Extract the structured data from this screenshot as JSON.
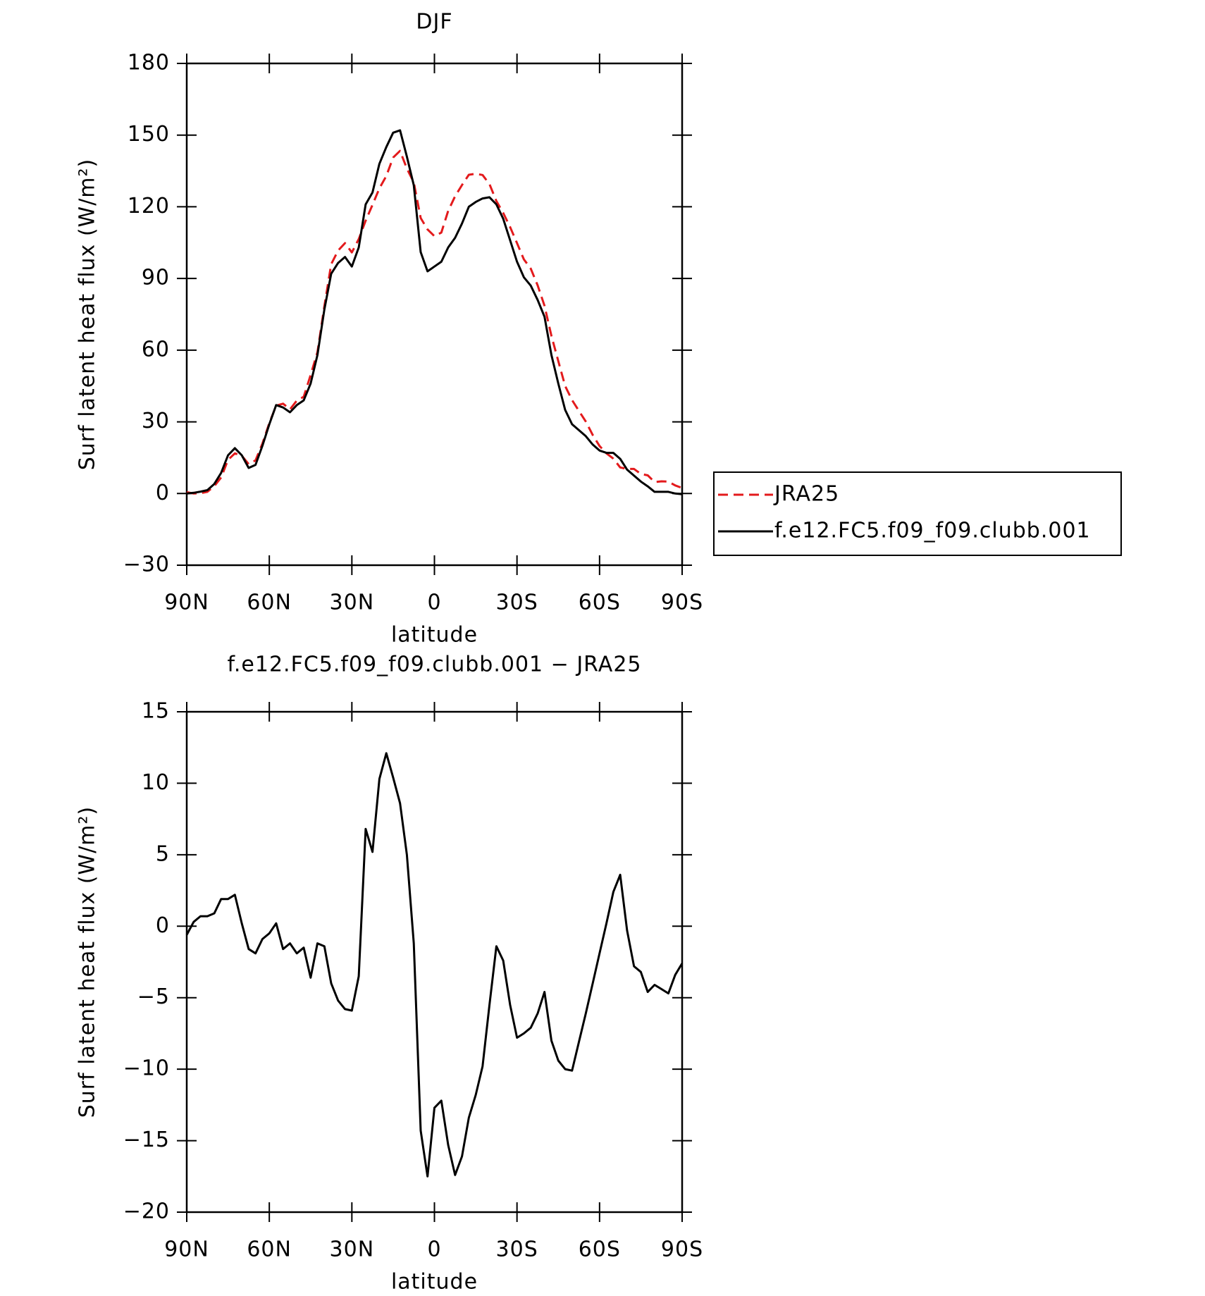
{
  "chart_data": [
    {
      "type": "line",
      "title": "DJF",
      "xlabel": "latitude",
      "ylabel": "Surf latent heat flux (W/m²)",
      "x": [
        90,
        87.5,
        85,
        82.5,
        80,
        77.5,
        75,
        72.5,
        70,
        67.5,
        65,
        62.5,
        60,
        57.5,
        55,
        52.5,
        50,
        47.5,
        45,
        42.5,
        40,
        37.5,
        35,
        32.5,
        30,
        27.5,
        25,
        22.5,
        20,
        17.5,
        15,
        12.5,
        10,
        7.5,
        5,
        2.5,
        0,
        -2.5,
        -5,
        -7.5,
        -10,
        -12.5,
        -15,
        -17.5,
        -20,
        -22.5,
        -25,
        -27.5,
        -30,
        -32.5,
        -35,
        -37.5,
        -40,
        -42.5,
        -45,
        -47.5,
        -50,
        -52.5,
        -55,
        -57.5,
        -60,
        -62.5,
        -65,
        -67.5,
        -70,
        -72.5,
        -75,
        -77.5,
        -80,
        -82.5,
        -85,
        -87.5,
        -90
      ],
      "xlim": [
        90,
        -90
      ],
      "xticks": [
        {
          "value": 90,
          "label": "90N"
        },
        {
          "value": 60,
          "label": "60N"
        },
        {
          "value": 30,
          "label": "30N"
        },
        0,
        {
          "value": -30,
          "label": "30S"
        },
        {
          "value": -60,
          "label": "60S"
        },
        {
          "value": -90,
          "label": "90S"
        }
      ],
      "ylim": [
        -30,
        180
      ],
      "yticks": [
        {
          "value": -30,
          "label": "−30"
        },
        0,
        30,
        60,
        90,
        120,
        150,
        180
      ],
      "legend": "right",
      "series": [
        {
          "name": "JRA25",
          "color": "#e31a1c",
          "dashed": true,
          "values": [
            0.6,
            0,
            0.1,
            0.7,
            3.1,
            6.7,
            14.1,
            16.8,
            15.8,
            12.3,
            13.9,
            20.9,
            29.5,
            36.8,
            37.6,
            35.2,
            38.9,
            40.5,
            49.6,
            59.2,
            78.4,
            96,
            101.7,
            104.8,
            100.9,
            106.5,
            114.2,
            120.8,
            127.7,
            132.9,
            140.6,
            143.4,
            136,
            130.2,
            115.3,
            110.5,
            107.7,
            109.2,
            118.3,
            124.4,
            129.1,
            133.4,
            133.8,
            133.3,
            129.5,
            122.4,
            117.4,
            111.5,
            104.8,
            98,
            94.1,
            87.1,
            78.6,
            66,
            55.4,
            45,
            39.1,
            34.6,
            30.1,
            24.5,
            19.9,
            16.8,
            14.6,
            10.9,
            10.3,
            10.3,
            8.2,
            7.6,
            4.8,
            5.1,
            5.0,
            3.4,
            2.3
          ]
        },
        {
          "name": "f.e12.FC5.f09_f09.clubb.001",
          "color": "#000000",
          "dashed": false,
          "values": [
            0,
            0.3,
            0.8,
            1.4,
            4,
            8.6,
            16,
            19,
            16,
            10.7,
            12,
            20,
            29,
            37,
            36,
            34,
            37,
            39,
            46,
            58,
            77,
            92,
            96.5,
            99,
            95,
            103,
            121,
            126,
            138,
            145,
            151,
            152,
            141,
            129,
            101,
            93,
            95,
            97,
            103,
            107,
            113,
            120,
            122,
            123.5,
            124,
            121,
            115,
            106,
            97,
            90.5,
            87,
            81,
            74,
            58,
            46,
            35,
            29,
            26.5,
            24,
            20.5,
            18,
            17,
            17,
            14.5,
            10,
            7.5,
            5,
            3,
            0.7,
            0.7,
            0.7,
            0,
            -0.3
          ]
        }
      ]
    },
    {
      "type": "line",
      "title": "f.e12.FC5.f09_f09.clubb.001 − JRA25",
      "xlabel": "latitude",
      "ylabel": "Surf latent heat flux (W/m²)",
      "x": [
        90,
        87.5,
        85,
        82.5,
        80,
        77.5,
        75,
        72.5,
        70,
        67.5,
        65,
        62.5,
        60,
        57.5,
        55,
        52.5,
        50,
        47.5,
        45,
        42.5,
        40,
        37.5,
        35,
        32.5,
        30,
        27.5,
        25,
        22.5,
        20,
        17.5,
        15,
        12.5,
        10,
        7.5,
        5,
        2.5,
        0,
        -2.5,
        -5,
        -7.5,
        -10,
        -12.5,
        -15,
        -17.5,
        -20,
        -22.5,
        -25,
        -27.5,
        -30,
        -32.5,
        -35,
        -37.5,
        -40,
        -42.5,
        -45,
        -47.5,
        -50,
        -52.5,
        -55,
        -57.5,
        -60,
        -62.5,
        -65,
        -67.5,
        -70,
        -72.5,
        -75,
        -77.5,
        -80,
        -82.5,
        -85,
        -87.5,
        -90
      ],
      "xlim": [
        90,
        -90
      ],
      "xticks": [
        {
          "value": 90,
          "label": "90N"
        },
        {
          "value": 60,
          "label": "60N"
        },
        {
          "value": 30,
          "label": "30N"
        },
        0,
        {
          "value": -30,
          "label": "30S"
        },
        {
          "value": -60,
          "label": "60S"
        },
        {
          "value": -90,
          "label": "90S"
        }
      ],
      "ylim": [
        -20,
        15
      ],
      "yticks": [
        {
          "value": -20,
          "label": "−20"
        },
        {
          "value": -15,
          "label": "−15"
        },
        {
          "value": -10,
          "label": "−10"
        },
        {
          "value": -5,
          "label": "−5"
        },
        0,
        5,
        10,
        15
      ],
      "series": [
        {
          "color": "#000000",
          "dashed": false,
          "values": [
            -0.6,
            0.3,
            0.7,
            0.7,
            0.9,
            1.9,
            1.9,
            2.2,
            0.2,
            -1.6,
            -1.9,
            -0.9,
            -0.5,
            0.2,
            -1.6,
            -1.2,
            -1.9,
            -1.5,
            -3.6,
            -1.2,
            -1.4,
            -4.0,
            -5.2,
            -5.8,
            -5.9,
            -3.5,
            6.8,
            5.2,
            10.3,
            12.1,
            10.4,
            8.6,
            5.0,
            -1.2,
            -14.3,
            -17.5,
            -12.7,
            -12.2,
            -15.3,
            -17.4,
            -16.1,
            -13.4,
            -11.8,
            -9.8,
            -5.5,
            -1.4,
            -2.4,
            -5.5,
            -7.8,
            -7.5,
            -7.1,
            -6.1,
            -4.6,
            -8.0,
            -9.4,
            -10.0,
            -10.1,
            -8.1,
            -6.1,
            -4.0,
            -1.9,
            0.2,
            2.4,
            3.6,
            -0.3,
            -2.8,
            -3.2,
            -4.6,
            -4.1,
            -4.4,
            -4.7,
            -3.4,
            -2.6
          ]
        }
      ]
    }
  ]
}
